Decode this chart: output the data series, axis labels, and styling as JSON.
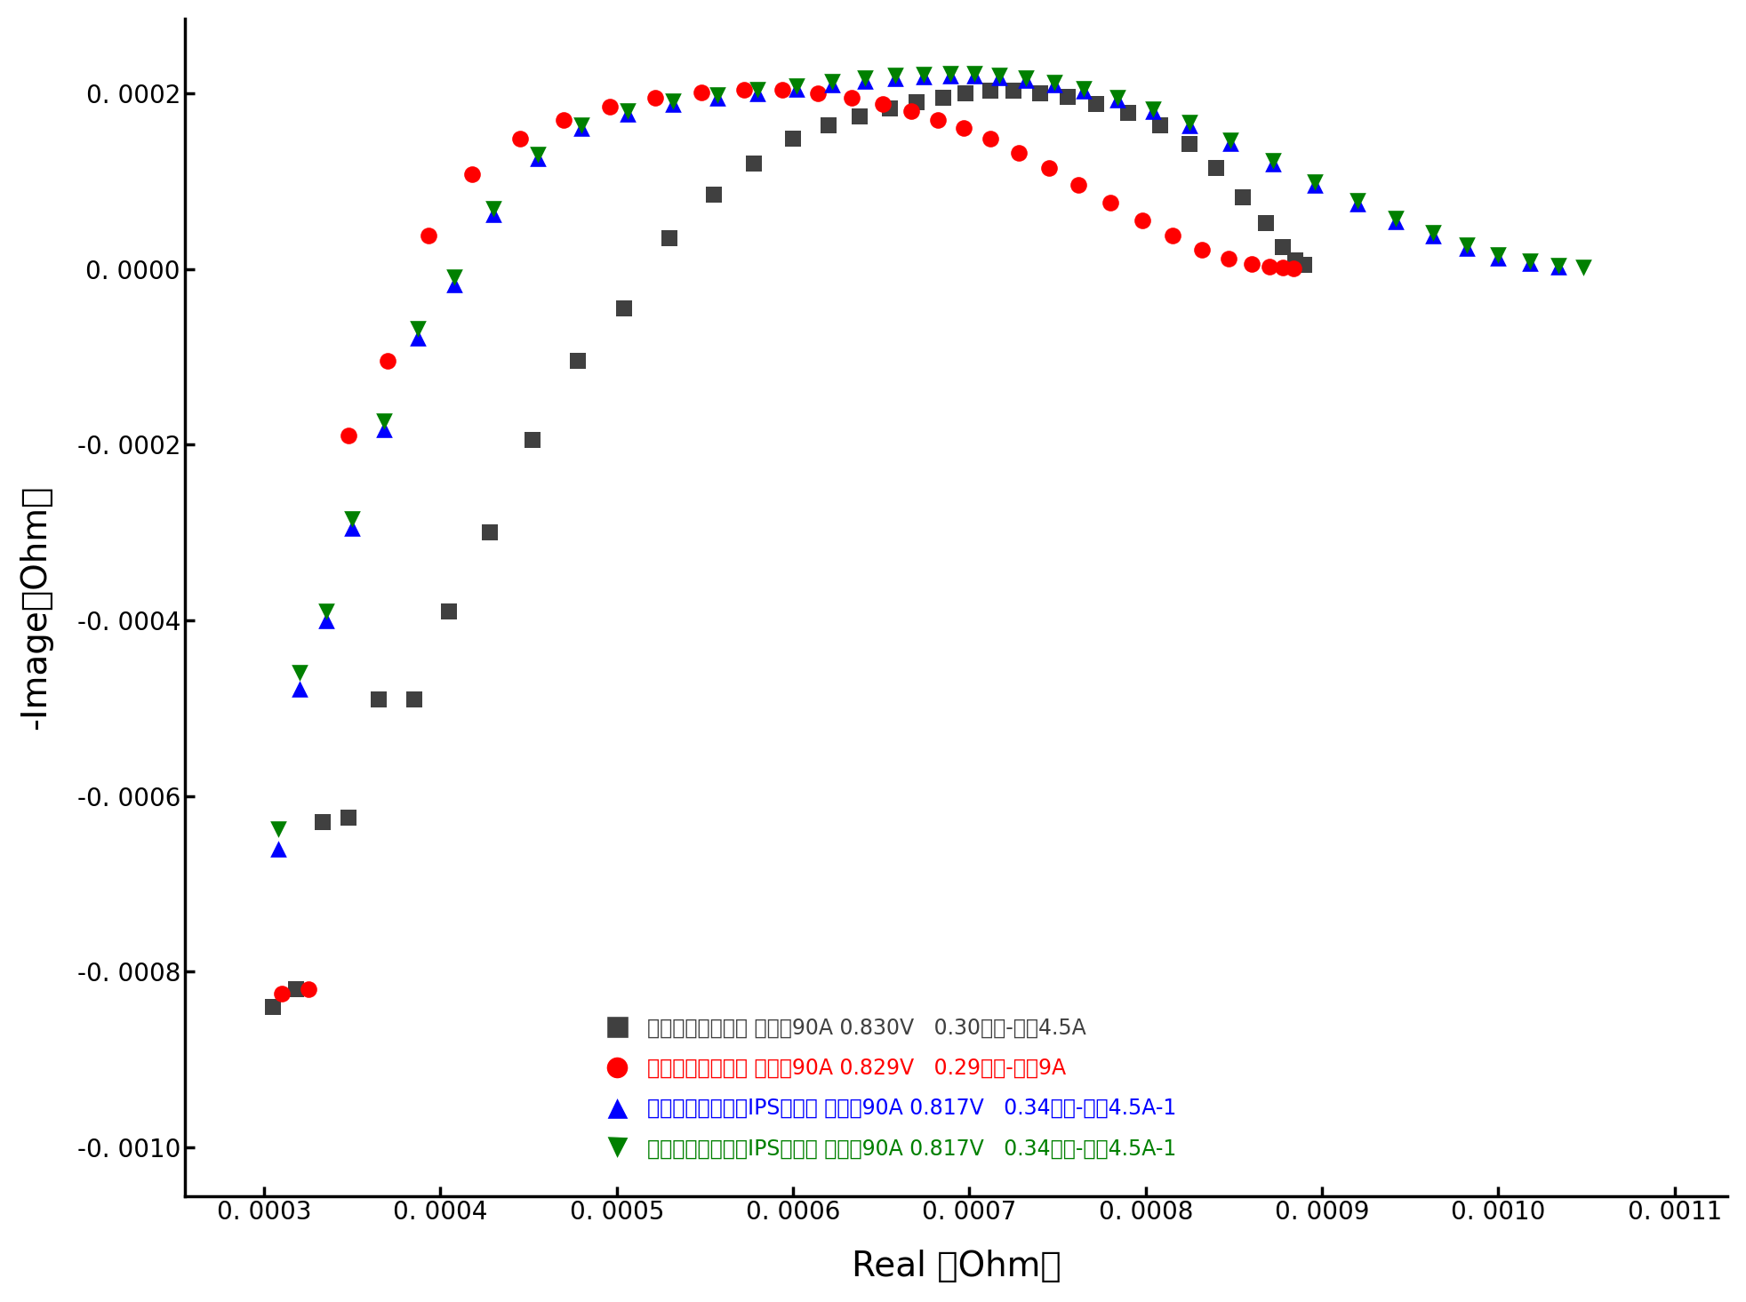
{
  "xlabel": "Real （Ohm）",
  "ylabel": "-Image（Ohm）",
  "xlim": [
    0.000255,
    0.00113
  ],
  "ylim": [
    -0.001055,
    0.000285
  ],
  "xticks": [
    0.0003,
    0.0004,
    0.0005,
    0.0006,
    0.0007,
    0.0008,
    0.0009,
    0.001,
    0.0011
  ],
  "yticks": [
    0.0002,
    0.0,
    -0.0002,
    -0.0004,
    -0.0006,
    -0.0008,
    -0.001
  ],
  "series1_label": "工作站并连接入： 单片汀90A 0.830V   0.30毫欧-振幈4.5A",
  "series1_color": "#404040",
  "series1_marker": "s",
  "series1_real": [
    0.000305,
    0.000318,
    0.000333,
    0.000348,
    0.000365,
    0.000385,
    0.000405,
    0.000428,
    0.000452,
    0.000478,
    0.000504,
    0.00053,
    0.000555,
    0.000578,
    0.0006,
    0.00062,
    0.000638,
    0.000655,
    0.00067,
    0.000685,
    0.000698,
    0.000712,
    0.000725,
    0.00074,
    0.000756,
    0.000772,
    0.00079,
    0.000808,
    0.000825,
    0.00084,
    0.000855,
    0.000868,
    0.000878,
    0.000885,
    0.00089
  ],
  "series1_imag": [
    -0.00084,
    -0.00082,
    -0.00063,
    -0.000625,
    -0.00049,
    -0.00049,
    -0.00039,
    -0.0003,
    -0.000195,
    -0.000105,
    -4.5e-05,
    3.5e-05,
    8.5e-05,
    0.00012,
    0.000148,
    0.000163,
    0.000174,
    0.000183,
    0.00019,
    0.000195,
    0.0002,
    0.000203,
    0.000203,
    0.0002,
    0.000196,
    0.000188,
    0.000178,
    0.000163,
    0.000142,
    0.000115,
    8.2e-05,
    5.2e-05,
    2.5e-05,
    1e-05,
    5e-06
  ],
  "series2_label": "工作站并连接入： 单片汀90A 0.829V   0.29毫欧-振幈9A",
  "series2_color": "#ff0000",
  "series2_marker": "o",
  "series2_real": [
    0.00031,
    0.000325,
    0.000348,
    0.00037,
    0.000393,
    0.000418,
    0.000445,
    0.00047,
    0.000496,
    0.000522,
    0.000548,
    0.000572,
    0.000594,
    0.000614,
    0.000633,
    0.000651,
    0.000667,
    0.000682,
    0.000697,
    0.000712,
    0.000728,
    0.000745,
    0.000762,
    0.00078,
    0.000798,
    0.000815,
    0.000832,
    0.000847,
    0.00086,
    0.00087,
    0.000878,
    0.000884
  ],
  "series2_imag": [
    -0.000825,
    -0.00082,
    -0.00019,
    -0.000105,
    3.8e-05,
    0.000108,
    0.000148,
    0.00017,
    0.000185,
    0.000195,
    0.000201,
    0.000204,
    0.000204,
    0.0002,
    0.000195,
    0.000188,
    0.00018,
    0.00017,
    0.00016,
    0.000148,
    0.000132,
    0.000115,
    9.6e-05,
    7.5e-05,
    5.5e-05,
    3.8e-05,
    2.2e-05,
    1.2e-05,
    6e-06,
    3e-06,
    2e-06,
    1e-06
  ],
  "series3_label": "工作站直接测试：IPS直接测 大电汀90A 0.817V   0.34毫欧-振幈4.5A-1",
  "series3_color": "#0000ff",
  "series3_marker": "^",
  "series3_real": [
    0.000308,
    0.00032,
    0.000335,
    0.00035,
    0.000368,
    0.000387,
    0.000408,
    0.00043,
    0.000455,
    0.00048,
    0.000506,
    0.000532,
    0.000557,
    0.00058,
    0.000602,
    0.000622,
    0.000641,
    0.000658,
    0.000674,
    0.000689,
    0.000703,
    0.000717,
    0.000732,
    0.000748,
    0.000765,
    0.000784,
    0.000804,
    0.000825,
    0.000848,
    0.000872,
    0.000896,
    0.00092,
    0.000942,
    0.000963,
    0.000982,
    0.001,
    0.001018,
    0.001034
  ],
  "series3_imag": [
    -0.00066,
    -0.000478,
    -0.0004,
    -0.000295,
    -0.000183,
    -7.8e-05,
    -1.8e-05,
    6.2e-05,
    0.000126,
    0.00016,
    0.000177,
    0.000188,
    0.000195,
    0.0002,
    0.000205,
    0.00021,
    0.000214,
    0.000217,
    0.000219,
    0.00022,
    0.00022,
    0.000218,
    0.000215,
    0.00021,
    0.000203,
    0.000193,
    0.00018,
    0.000163,
    0.000143,
    0.00012,
    9.6e-05,
    7.4e-05,
    5.4e-05,
    3.8e-05,
    2.4e-05,
    1.3e-05,
    7e-06,
    3e-06
  ],
  "series4_label": "工作站直接测试：IPS直接测 大电汀90A 0.817V   0.34毫欧-振幈4.5A-1",
  "series4_color": "#008000",
  "series4_marker": "v",
  "series4_real": [
    0.000308,
    0.00032,
    0.000335,
    0.00035,
    0.000368,
    0.000387,
    0.000408,
    0.00043,
    0.000455,
    0.00048,
    0.000506,
    0.000532,
    0.000557,
    0.00058,
    0.000602,
    0.000622,
    0.000641,
    0.000658,
    0.000674,
    0.000689,
    0.000703,
    0.000717,
    0.000732,
    0.000748,
    0.000765,
    0.000784,
    0.000804,
    0.000825,
    0.000848,
    0.000872,
    0.000896,
    0.00092,
    0.000942,
    0.000963,
    0.000982,
    0.001,
    0.001018,
    0.001034,
    0.001048
  ],
  "series4_imag": [
    -0.000638,
    -0.00046,
    -0.00039,
    -0.000285,
    -0.000173,
    -6.8e-05,
    -1e-05,
    6.8e-05,
    0.00013,
    0.000163,
    0.00018,
    0.000191,
    0.000198,
    0.000204,
    0.000208,
    0.000213,
    0.000217,
    0.00022,
    0.000221,
    0.000222,
    0.000222,
    0.00022,
    0.000217,
    0.000212,
    0.000205,
    0.000195,
    0.000182,
    0.000166,
    0.000146,
    0.000123,
    9.9e-05,
    7.7e-05,
    5.7e-05,
    4.1e-05,
    2.7e-05,
    1.6e-05,
    9e-06,
    4e-06,
    2e-06
  ]
}
